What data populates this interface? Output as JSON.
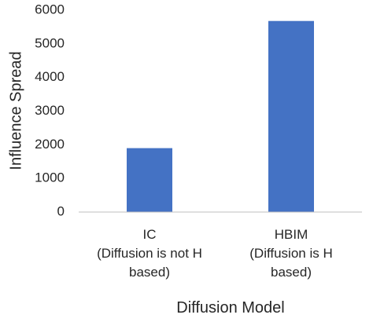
{
  "chart_data": {
    "type": "bar",
    "categories": [
      [
        "IC",
        "(Diffusion is not H",
        "based)"
      ],
      [
        "HBIM",
        "(Diffusion is H",
        "based)"
      ]
    ],
    "values": [
      1900,
      5680
    ],
    "title": "",
    "xlabel": "Diffusion Model",
    "ylabel": "Influence Spread",
    "ylim": [
      0,
      6000
    ],
    "yticks": [
      0,
      1000,
      2000,
      3000,
      4000,
      5000,
      6000
    ],
    "grid": false,
    "legend": "none",
    "bar_color": "#4472C4",
    "axis_color": "#BFBFBF"
  }
}
